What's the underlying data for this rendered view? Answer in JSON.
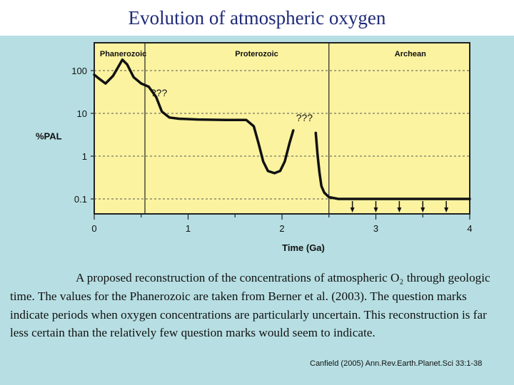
{
  "slide": {
    "title": "Evolution of atmospheric oxygen",
    "caption": "A proposed reconstruction of the concentrations of atmospheric O₂ through geologic time. The values for the Phanerozoic are taken from Berner et al. (2003). The question marks indicate periods when oxygen concentrations are particularly uncertain. This reconstruction is far less certain than the relatively few question marks would seem to indicate.",
    "citation": "Canfield (2005) Ann.Rev.Earth.Planet.Sci 33:1-38"
  },
  "colors": {
    "plot_background": "#fbf3a0",
    "panel_background": "#b7dfe3",
    "title_text": "#1f2a78",
    "curve": "#111111"
  },
  "chart_data": {
    "type": "line",
    "xlabel": "Time (Ga)",
    "ylabel": "%PAL",
    "xlim": [
      0,
      4
    ],
    "ylim_log10": [
      -1.35,
      2.65
    ],
    "y_scale": "log",
    "grid": "dashed horizontal at decades",
    "x_ticks": [
      "0",
      "1",
      "2",
      "3",
      "4"
    ],
    "y_ticks": [
      {
        "value": 100,
        "label": "100"
      },
      {
        "value": 10,
        "label": "10"
      },
      {
        "value": 1,
        "label": "1"
      },
      {
        "value": 0.1,
        "label": "0.1"
      }
    ],
    "era_labels": [
      {
        "name": "Phanerozoic",
        "x": 0.06
      },
      {
        "name": "Proterozoic",
        "x": 1.5
      },
      {
        "name": "Archean",
        "x": 3.2
      }
    ],
    "era_boundaries": [
      0.54,
      2.5
    ],
    "series": [
      {
        "segment": "phanerozoic-proterozoic",
        "points": [
          [
            0.0,
            80
          ],
          [
            0.05,
            65
          ],
          [
            0.12,
            50
          ],
          [
            0.2,
            75
          ],
          [
            0.28,
            150
          ],
          [
            0.3,
            180
          ],
          [
            0.35,
            140
          ],
          [
            0.42,
            70
          ],
          [
            0.5,
            50
          ],
          [
            0.58,
            42
          ],
          [
            0.66,
            24
          ],
          [
            0.72,
            11
          ],
          [
            0.8,
            8
          ],
          [
            0.9,
            7.5
          ],
          [
            1.1,
            7.2
          ],
          [
            1.4,
            7
          ],
          [
            1.62,
            7
          ],
          [
            1.7,
            5
          ],
          [
            1.75,
            2
          ],
          [
            1.8,
            0.75
          ],
          [
            1.85,
            0.45
          ],
          [
            1.92,
            0.4
          ],
          [
            1.98,
            0.45
          ],
          [
            2.03,
            0.75
          ],
          [
            2.08,
            2
          ],
          [
            2.12,
            4
          ]
        ]
      },
      {
        "segment": "archean",
        "points": [
          [
            2.36,
            3.5
          ],
          [
            2.38,
            1
          ],
          [
            2.4,
            0.4
          ],
          [
            2.42,
            0.2
          ],
          [
            2.45,
            0.14
          ],
          [
            2.5,
            0.11
          ],
          [
            2.6,
            0.1
          ],
          [
            3.0,
            0.1
          ],
          [
            4.0,
            0.1
          ]
        ]
      }
    ],
    "annotations": [
      {
        "text": "???",
        "x": 0.6,
        "y": 25
      },
      {
        "text": "???",
        "x": 2.15,
        "y": 6.5
      }
    ],
    "upper_limit_arrows_x": [
      2.75,
      3.0,
      3.25,
      3.5,
      3.75
    ]
  }
}
